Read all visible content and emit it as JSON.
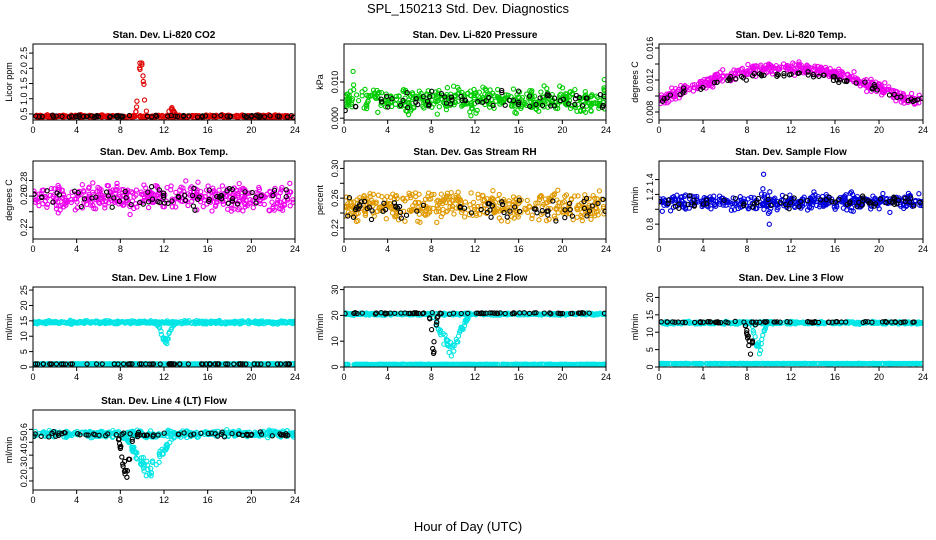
{
  "page": {
    "title": "SPL_150213  Std. Dev. Diagnostics",
    "xlabel": "Hour of Day (UTC)"
  },
  "chart_data": [
    {
      "type": "scatter",
      "title": "Stan. Dev. Li-820 CO2",
      "ylabel": "Licor ppm",
      "xlim": [
        0,
        24
      ],
      "ylim": [
        0.3,
        2.8
      ],
      "xticks": [
        0,
        4,
        8,
        12,
        16,
        20,
        24
      ],
      "yticks": [
        0.5,
        1.0,
        1.5,
        2.0,
        2.5
      ],
      "ytick_labels": [
        "0.5",
        "1.0",
        "1.5",
        "2.0",
        "2.5"
      ],
      "series": [
        {
          "color": "#e00000",
          "role": "band",
          "base": 0.42,
          "spread": 0.06,
          "events": [
            {
              "start": 9.4,
              "end": 10.4,
              "peak": 2.75,
              "dir": 1
            },
            {
              "start": 12.2,
              "end": 13.2,
              "peak": 0.75,
              "dir": 1
            }
          ]
        },
        {
          "color": "#000000",
          "role": "sparse",
          "base": 0.42,
          "spread": 0.05,
          "events": []
        }
      ]
    },
    {
      "type": "scatter",
      "title": "Stan. Dev. Li-820 Pressure",
      "ylabel": "kPa",
      "xlim": [
        0,
        24
      ],
      "ylim": [
        -0.0005,
        0.0205
      ],
      "xticks": [
        0,
        4,
        8,
        12,
        16,
        20,
        24
      ],
      "yticks": [
        0.0,
        0.005,
        0.01
      ],
      "ytick_labels": [
        "0.000",
        "",
        "0.010"
      ],
      "series": [
        {
          "color": "#00cc00",
          "role": "band",
          "base": 0.005,
          "spread": 0.0045,
          "events": [
            {
              "start": 0.8,
              "end": 0.9,
              "peak": 0.019,
              "dir": 1
            },
            {
              "start": 9.4,
              "end": 9.5,
              "peak": 0.0118,
              "dir": 1
            },
            {
              "start": 23.8,
              "end": 23.9,
              "peak": 0.0135,
              "dir": 1
            }
          ]
        },
        {
          "color": "#000000",
          "role": "sparse",
          "base": 0.005,
          "spread": 0.0035,
          "events": []
        }
      ]
    },
    {
      "type": "scatter",
      "title": "Stan. Dev. Li-820 Temp.",
      "ylabel": "degrees C",
      "xlim": [
        0,
        24
      ],
      "ylim": [
        0.007,
        0.0165
      ],
      "xticks": [
        0,
        4,
        8,
        12,
        16,
        20,
        24
      ],
      "yticks": [
        0.008,
        0.01,
        0.012,
        0.014,
        0.016
      ],
      "ytick_labels": [
        "0.008",
        "",
        "0.012",
        "",
        "0.016"
      ],
      "series": [
        {
          "color": "#ee00ee",
          "role": "arch",
          "base": 0.0095,
          "peak": 0.0135,
          "spread": 0.0011,
          "events": []
        },
        {
          "color": "#000000",
          "role": "sparse-arch",
          "base": 0.0095,
          "peak": 0.0128,
          "spread": 0.0006,
          "events": []
        }
      ]
    },
    {
      "type": "scatter",
      "title": "Stan. Dev. Amb. Box Temp.",
      "ylabel": "degrees C",
      "xlim": [
        0,
        24
      ],
      "ylim": [
        0.205,
        0.305
      ],
      "xticks": [
        0,
        4,
        8,
        12,
        16,
        20,
        24
      ],
      "yticks": [
        0.22,
        0.24,
        0.26,
        0.28
      ],
      "ytick_labels": [
        "0.22",
        "",
        "0.26",
        "0.28"
      ],
      "series": [
        {
          "color": "#ee00ee",
          "role": "band",
          "base": 0.258,
          "spread": 0.024,
          "events": []
        },
        {
          "color": "#000000",
          "role": "sparse",
          "base": 0.258,
          "spread": 0.02,
          "events": []
        }
      ]
    },
    {
      "type": "scatter",
      "title": "Stan. Dev. Gas Stream RH",
      "ylabel": "percent",
      "xlim": [
        0,
        24
      ],
      "ylim": [
        0.205,
        0.31
      ],
      "xticks": [
        0,
        4,
        8,
        12,
        16,
        20,
        24
      ],
      "yticks": [
        0.22,
        0.24,
        0.26,
        0.28,
        0.3
      ],
      "ytick_labels": [
        "0.22",
        "",
        "0.26",
        "",
        "0.30"
      ],
      "series": [
        {
          "color": "#e09a00",
          "role": "band",
          "base": 0.25,
          "spread": 0.028,
          "events": []
        },
        {
          "color": "#000000",
          "role": "sparse",
          "base": 0.245,
          "spread": 0.022,
          "events": []
        }
      ]
    },
    {
      "type": "scatter",
      "title": "Stan. Dev. Sample Flow",
      "ylabel": "ml/min",
      "xlim": [
        0,
        24
      ],
      "ylim": [
        0.6,
        1.65
      ],
      "xticks": [
        0,
        4,
        8,
        12,
        16,
        20,
        24
      ],
      "yticks": [
        0.8,
        1.0,
        1.2,
        1.4
      ],
      "ytick_labels": [
        "0.8",
        "",
        "1.2",
        "1.4"
      ],
      "series": [
        {
          "color": "#0000dd",
          "role": "band",
          "base": 1.1,
          "spread": 0.16,
          "events": [
            {
              "start": 9.4,
              "end": 9.6,
              "peak": 1.55,
              "dir": 1
            },
            {
              "start": 9.9,
              "end": 10.1,
              "peak": 0.65,
              "dir": -1
            }
          ]
        },
        {
          "color": "#000000",
          "role": "sparse",
          "base": 1.1,
          "spread": 0.12,
          "events": []
        }
      ]
    },
    {
      "type": "scatter",
      "title": "Stan. Dev. Line 1 Flow",
      "ylabel": "ml/min",
      "xlim": [
        0,
        24
      ],
      "ylim": [
        0,
        26
      ],
      "xticks": [
        0,
        4,
        8,
        12,
        16,
        20,
        24
      ],
      "yticks": [
        0,
        5,
        10,
        15,
        20,
        25
      ],
      "ytick_labels": [
        "0",
        "5",
        "10",
        "15",
        "20",
        "25"
      ],
      "series": [
        {
          "color": "#00e5e5",
          "role": "band",
          "base": 14.5,
          "spread": 0.7,
          "events": [
            {
              "start": 11.3,
              "end": 13.0,
              "peak": 6.5,
              "dir": -1
            }
          ]
        },
        {
          "color": "#00e5e5",
          "role": "line",
          "base": 1.0,
          "spread": 0.05,
          "events": []
        },
        {
          "color": "#000000",
          "role": "line-sparse",
          "base": 1.0,
          "spread": 0.05,
          "events": []
        }
      ]
    },
    {
      "type": "scatter",
      "title": "Stan. Dev. Line 2 Flow",
      "ylabel": "ml/min",
      "xlim": [
        0,
        24
      ],
      "ylim": [
        0,
        31
      ],
      "xticks": [
        0,
        4,
        8,
        12,
        16,
        20,
        24
      ],
      "yticks": [
        0,
        10,
        20,
        30
      ],
      "ytick_labels": [
        "0",
        "10",
        "20",
        "30"
      ],
      "series": [
        {
          "color": "#00e5e5",
          "role": "band",
          "base": 20.5,
          "spread": 0.6,
          "events": [
            {
              "start": 8.0,
              "end": 11.5,
              "peak": 2.0,
              "dir": -1
            }
          ]
        },
        {
          "color": "#00e5e5",
          "role": "line",
          "base": 1.0,
          "spread": 0.1,
          "events": []
        },
        {
          "color": "#000000",
          "role": "sparse",
          "base": 20.8,
          "spread": 0.4,
          "events": [
            {
              "start": 7.8,
              "end": 8.6,
              "peak": 3.0,
              "dir": -1
            }
          ]
        }
      ]
    },
    {
      "type": "scatter",
      "title": "Stan. Dev. Line 3 Flow",
      "ylabel": "ml/min",
      "xlim": [
        0,
        24
      ],
      "ylim": [
        0,
        23
      ],
      "xticks": [
        0,
        4,
        8,
        12,
        16,
        20,
        24
      ],
      "yticks": [
        0,
        5,
        10,
        15,
        20
      ],
      "ytick_labels": [
        "0",
        "5",
        "10",
        "15",
        "20"
      ],
      "series": [
        {
          "color": "#00e5e5",
          "role": "band",
          "base": 12.7,
          "spread": 0.5,
          "events": [
            {
              "start": 8.4,
              "end": 9.8,
              "peak": 2.5,
              "dir": -1
            }
          ]
        },
        {
          "color": "#00e5e5",
          "role": "line",
          "base": 1.0,
          "spread": 0.05,
          "events": []
        },
        {
          "color": "#000000",
          "role": "sparse",
          "base": 12.9,
          "spread": 0.3,
          "events": [
            {
              "start": 7.8,
              "end": 8.8,
              "peak": 3.0,
              "dir": -1
            }
          ]
        }
      ]
    },
    {
      "type": "scatter",
      "title": "Stan. Dev. Line 4 (LT) Flow",
      "ylabel": "ml/min",
      "xlim": [
        0,
        24
      ],
      "ylim": [
        0.13,
        0.75
      ],
      "xticks": [
        0,
        4,
        8,
        12,
        16,
        20,
        24
      ],
      "yticks": [
        0.2,
        0.3,
        0.4,
        0.5,
        0.6
      ],
      "ytick_labels": [
        "0.2",
        "0.3",
        "0.4",
        "0.5",
        "0.6"
      ],
      "series": [
        {
          "color": "#00e5e5",
          "role": "band",
          "base": 0.565,
          "spread": 0.035,
          "events": [
            {
              "start": 8.2,
              "end": 13.0,
              "peak": 0.2,
              "dir": -1
            }
          ]
        },
        {
          "color": "#000000",
          "role": "sparse",
          "base": 0.56,
          "spread": 0.03,
          "events": [
            {
              "start": 7.8,
              "end": 9.2,
              "peak": 0.16,
              "dir": -1
            }
          ]
        }
      ]
    }
  ]
}
